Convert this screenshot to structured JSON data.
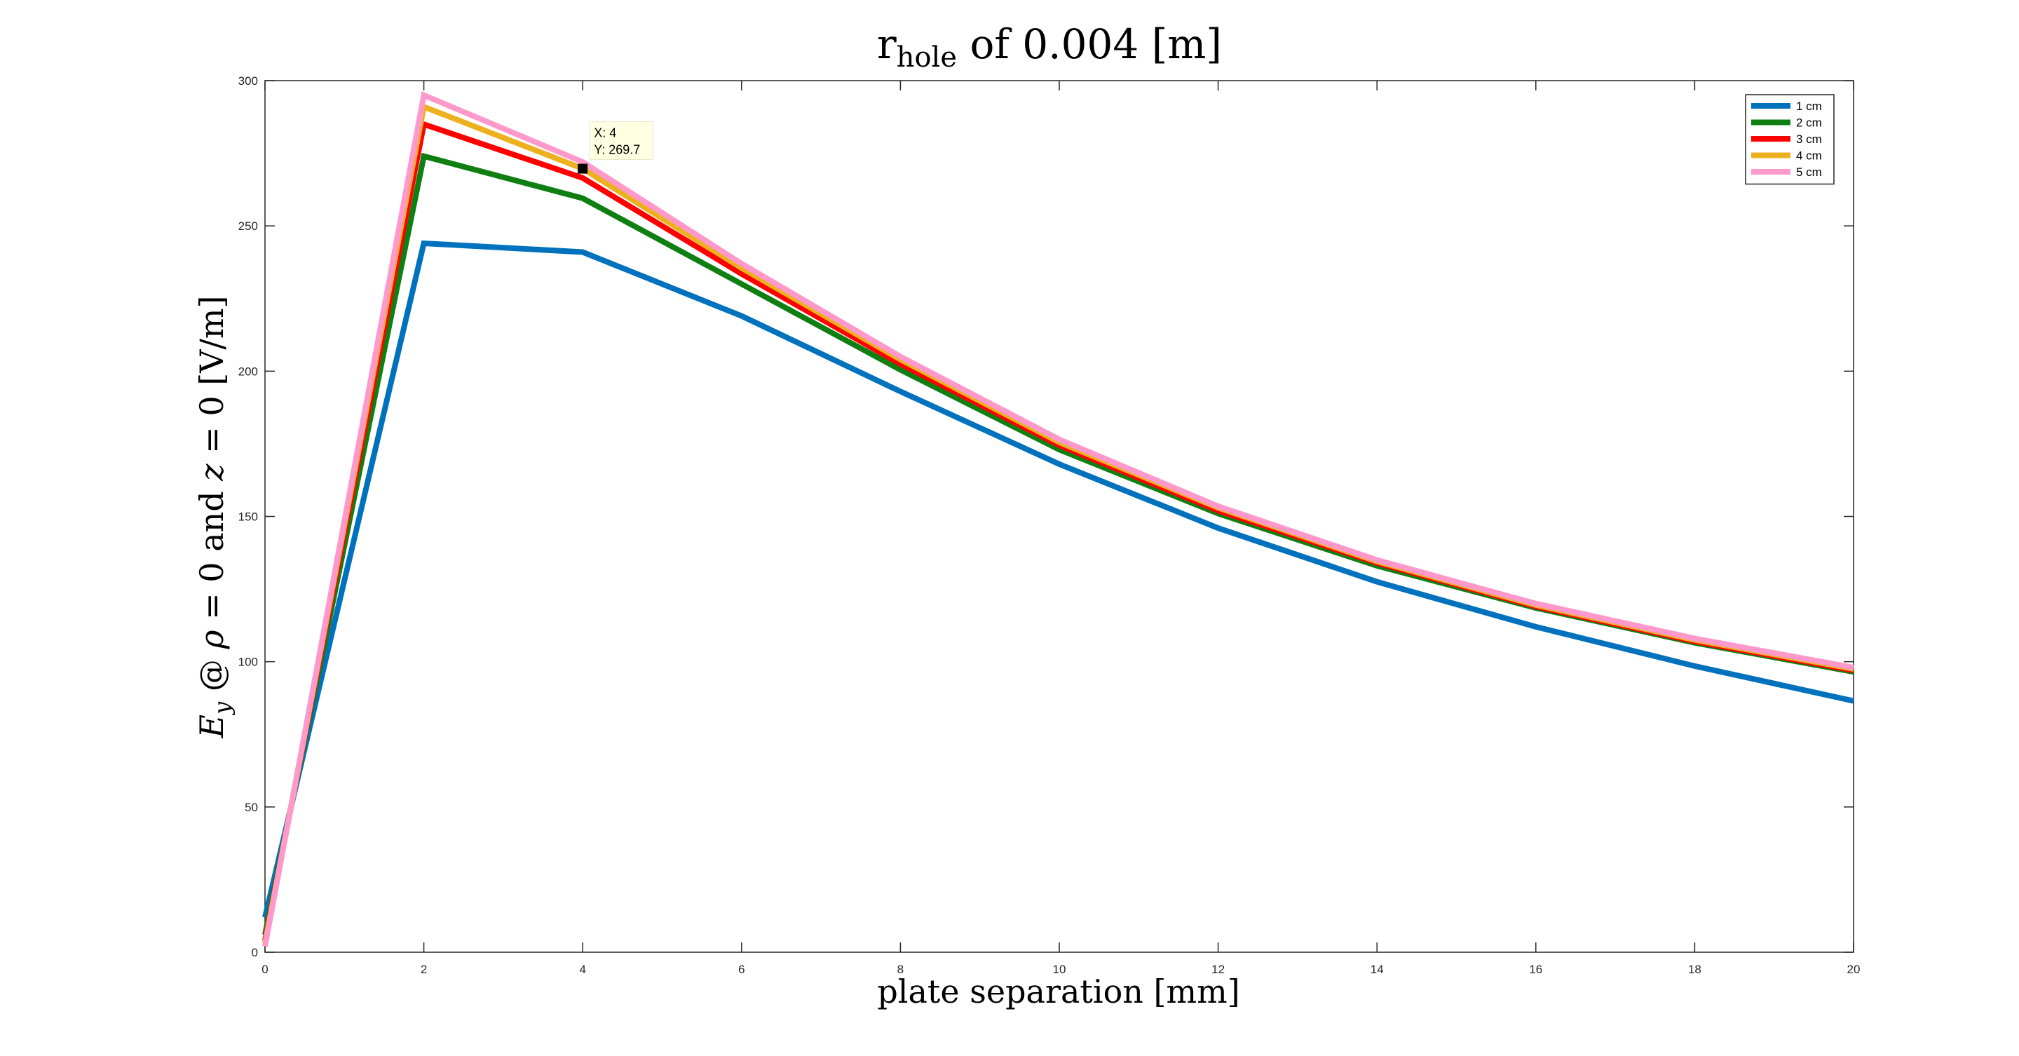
{
  "chart_data": {
    "type": "line",
    "title_main": "r",
    "title_sub": "hole",
    "title_rest": " of 0.004 [m]",
    "xlabel": "plate separation [mm]",
    "ylabel_parts": {
      "E": "E",
      "y": "y",
      "at": " @ ",
      "rho": "ρ",
      "eq0_and": " = 0 and ",
      "z": "z",
      "eq0_unit": " = 0 [V/m]"
    },
    "xlim": [
      0,
      20
    ],
    "ylim": [
      0,
      300
    ],
    "x_ticks": [
      "0",
      "2",
      "4",
      "6",
      "8",
      "10",
      "12",
      "14",
      "16",
      "18",
      "20"
    ],
    "y_ticks": [
      "0",
      "50",
      "100",
      "150",
      "200",
      "250",
      "300"
    ],
    "grid": false,
    "legend_position": "top-right",
    "x": [
      0,
      2,
      4,
      6,
      8,
      10,
      12,
      14,
      16,
      18,
      20
    ],
    "series": [
      {
        "name": "1 cm",
        "color": "#0072BD",
        "values": [
          12,
          244,
          241,
          219,
          193,
          168,
          146,
          127.5,
          112,
          98.5,
          86.5
        ]
      },
      {
        "name": "2 cm",
        "color": "#0F7F12",
        "values": [
          6,
          274,
          259.5,
          230,
          200.5,
          173,
          151,
          133,
          118.5,
          106.5,
          96.5
        ]
      },
      {
        "name": "3 cm",
        "color": "#FF0000",
        "values": [
          4,
          285,
          266.5,
          233.5,
          202.5,
          174.5,
          152,
          134,
          119,
          107,
          97
        ]
      },
      {
        "name": "4 cm",
        "color": "#EDB120",
        "values": [
          3,
          291,
          269.7,
          235.5,
          204,
          175.5,
          153,
          134.5,
          119.5,
          107.5,
          97.5
        ]
      },
      {
        "name": "5 cm",
        "color": "#FF99CC",
        "values": [
          2,
          295,
          272,
          237,
          205,
          176.5,
          153.5,
          135,
          120,
          108,
          98
        ]
      }
    ],
    "datatip": {
      "series": "4 cm",
      "x": 4,
      "y": 269.7,
      "x_label": "X: 4",
      "y_label": "Y: 269.7",
      "bg": "#FFFFE1"
    }
  }
}
